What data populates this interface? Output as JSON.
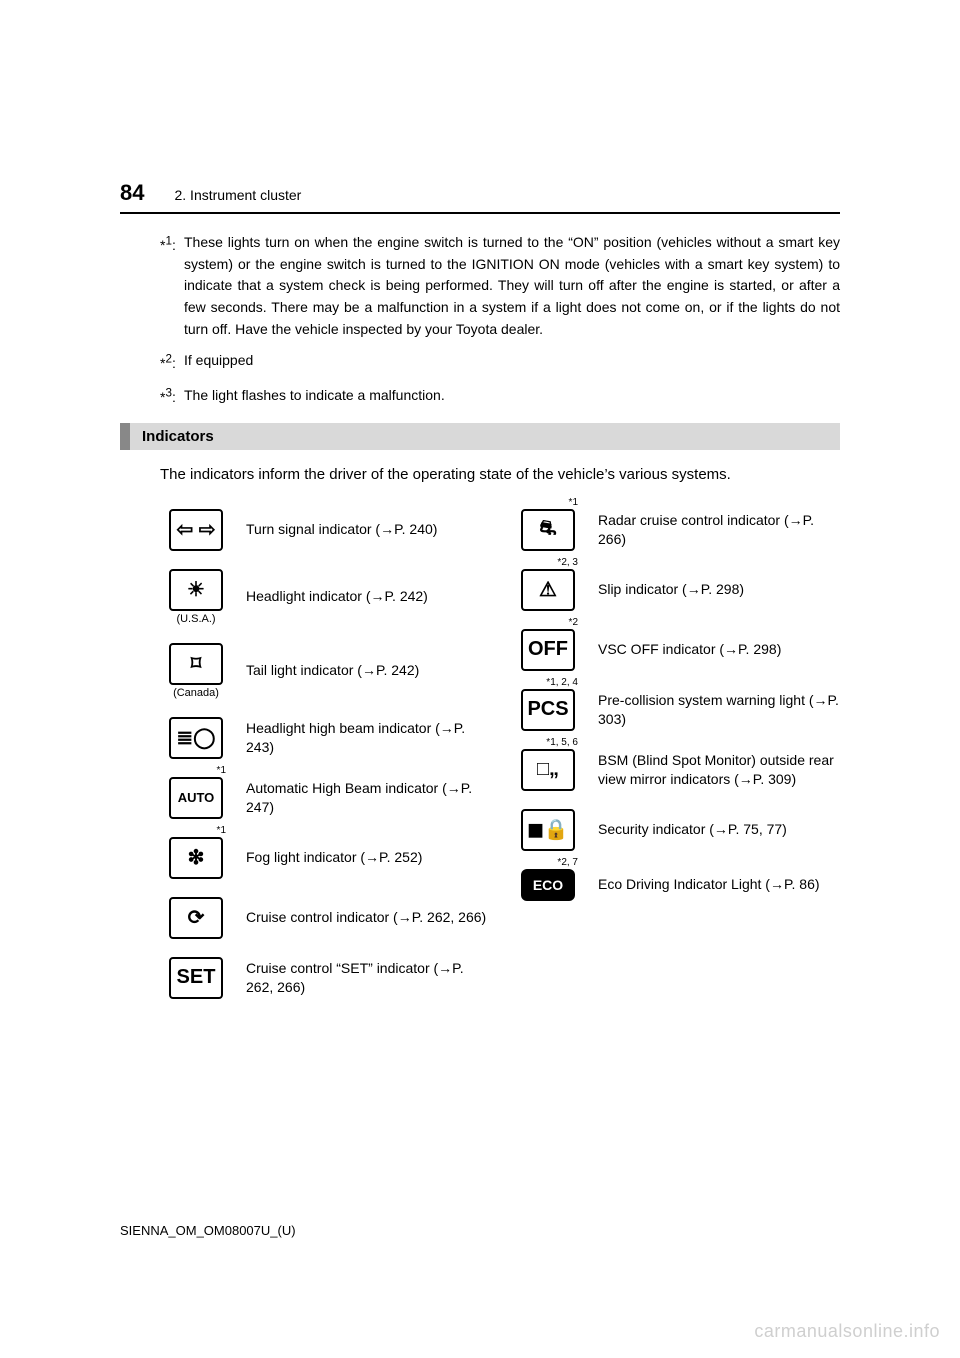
{
  "page_number": "84",
  "section_title": "2. Instrument cluster",
  "footnotes": {
    "f1": {
      "marker": "*1",
      "text": "These lights turn on when the engine switch is turned to the “ON” position (vehicles without a smart key system) or the engine switch is turned to the IGNITION ON mode (vehicles with a smart key system) to indicate that a system check is being performed. They will turn off after the engine is started, or after a few seconds. There may be a malfunction in a system if a light does not come on, or if the lights do not turn off. Have the vehicle inspected by your Toyota dealer."
    },
    "f2": {
      "marker": "*2",
      "text": "If equipped"
    },
    "f3": {
      "marker": "*3",
      "text": "The light flashes to indicate a malfunction."
    }
  },
  "subsection_heading": "Indicators",
  "intro_text": "The indicators inform the driver of the operating state of the vehicle’s various systems.",
  "left_column": [
    {
      "glyph": "⇦ ⇨",
      "sup": "",
      "sub": "",
      "desc": "Turn signal indicator (→P. 240)"
    },
    {
      "glyph": "☀",
      "sup": "",
      "sub": "(U.S.A.)",
      "desc": "Headlight indicator (→P. 242)"
    },
    {
      "glyph": "⌑",
      "sup": "",
      "sub": "(Canada)",
      "desc": "Tail light indicator (→P. 242)"
    },
    {
      "glyph": "≣◯",
      "sup": "",
      "sub": "",
      "desc": "Headlight high beam indicator (→P. 243)"
    },
    {
      "glyph": "AUTO",
      "sup": "*1",
      "sub": "",
      "desc": "Automatic High Beam indicator (→P. 247)"
    },
    {
      "glyph": "❇",
      "sup": "*1",
      "sub": "",
      "desc": "Fog light indicator (→P. 252)"
    },
    {
      "glyph": "⟳",
      "sup": "",
      "sub": "",
      "desc": "Cruise control indicator (→P. 262, 266)"
    },
    {
      "glyph": "SET",
      "sup": "",
      "sub": "",
      "desc": "Cruise control “SET” indicator (→P. 262, 266)"
    }
  ],
  "right_column": [
    {
      "glyph": "⛐",
      "sup": "*1",
      "sub": "",
      "desc": "Radar cruise control indicator (→P. 266)"
    },
    {
      "glyph": "⚠",
      "sup": "*2, 3",
      "sub": "",
      "desc": "Slip indicator (→P. 298)"
    },
    {
      "glyph": "OFF",
      "sup": "*2",
      "sub": "",
      "desc": "VSC OFF indicator (→P. 298)"
    },
    {
      "glyph": "PCS",
      "sup": "*1, 2, 4",
      "sub": "",
      "desc": "Pre-collision system warning light (→P. 303)"
    },
    {
      "glyph": "□„",
      "sup": "*1, 5, 6",
      "sub": "",
      "desc": "BSM (Blind Spot Monitor) outside rear view mirror indicators (→P. 309)"
    },
    {
      "glyph": "◼🔒",
      "sup": "",
      "sub": "",
      "desc": "Security indicator (→P. 75, 77)"
    },
    {
      "glyph": "ECO",
      "sup": "*2, 7",
      "sub": "",
      "desc": "Eco Driving Indicator Light (→P. 86)",
      "eco": true
    }
  ],
  "doc_code": "SIENNA_OM_OM08007U_(U)",
  "watermark": "carmanualsonline.info"
}
